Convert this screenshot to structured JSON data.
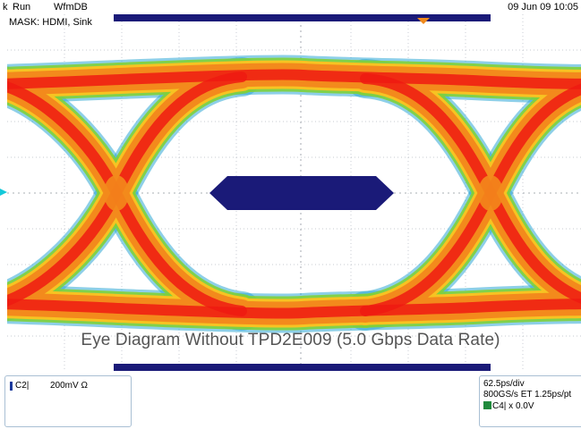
{
  "header": {
    "trigger_status": "k",
    "run_state": "Run",
    "acq_mode": "WfmDB",
    "datetime": "09 Jun 09 10:05"
  },
  "mask": {
    "label": "MASK: HDMI, Sink"
  },
  "caption": "Eye Diagram Without TPD2E009 (5.0 Gbps Data Rate)",
  "channel": {
    "name": "C2|",
    "scale": "200mV Ω"
  },
  "timebase": {
    "line1": "62.5ps/div",
    "line2": "800GS/s ET 1.25ps/pt",
    "trigger": "C4|",
    "trigger_level": "x 0.0V"
  },
  "colors": {
    "mask": "#1a1a78",
    "eye_hot": "#ee1a12",
    "eye_warm": "#f38a1c",
    "eye_mid": "#f7c322",
    "eye_cool": "#7fd03a",
    "eye_edge": "#2fa8d6",
    "grid": "#9aa0a8"
  }
}
